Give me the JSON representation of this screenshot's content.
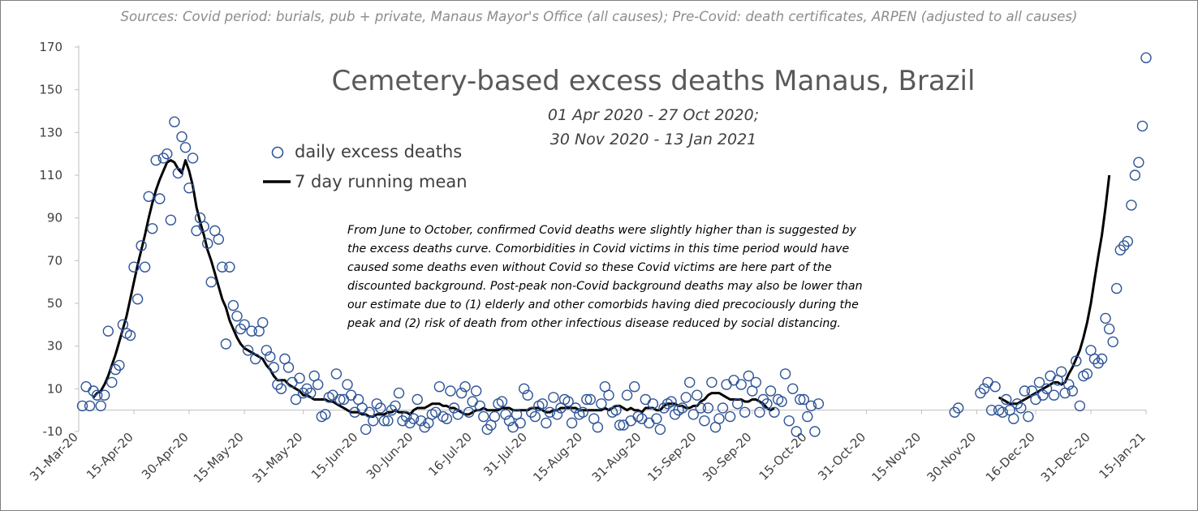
{
  "chart_data": {
    "type": "scatter",
    "source_note": "Sources: Covid period: burials, pub + private, Manaus Mayor's Office (all causes);  Pre-Covid: death certificates, ARPEN (adjusted to all causes)",
    "title": "Cemetery-based excess deaths Manaus, Brazil",
    "subtitle_lines": [
      "01 Apr 2020 - 27 Oct 2020;",
      "30 Nov 2020 - 13 Jan 2021"
    ],
    "xlabel": "",
    "ylabel": "",
    "ylim": [
      -10,
      170
    ],
    "y_ticks": [
      "-10",
      "10",
      "30",
      "50",
      "70",
      "90",
      "110",
      "130",
      "150",
      "170"
    ],
    "x_ticks": [
      "31-Mar-20",
      "15-Apr-20",
      "30-Apr-20",
      "15-May-20",
      "31-May-20",
      "15-Jun-20",
      "30-Jun-20",
      "16-Jul-20",
      "31-Jul-20",
      "15-Aug-20",
      "31-Aug-20",
      "15-Sep-20",
      "30-Sep-20",
      "15-Oct-20",
      "31-Oct-20",
      "15-Nov-20",
      "30-Nov-20",
      "16-Dec-20",
      "31-Dec-20",
      "15-Jan-21"
    ],
    "x_range": [
      "2020-03-31",
      "2021-01-15"
    ],
    "grid": false,
    "legend": {
      "placement": "top-left",
      "entries": [
        "daily excess deaths",
        "7 day running mean"
      ]
    },
    "annotation_lines": [
      "From June to October, confirmed Covid deaths were slightly higher than is suggested by",
      "the excess deaths curve. Comorbidities in Covid victims in this time period would have",
      "caused some deaths even without Covid so these Covid victims are here part of the",
      "discounted background. Post-peak non-Covid background deaths may also be lower than",
      "our estimate due to (1) elderly and  other comorbids having died precociously during the",
      "peak and (2) risk of death from other infectious disease reduced by social distancing."
    ],
    "colors": {
      "marker": "#2f5597",
      "line": "#000000",
      "axis": "#bfbfbf"
    },
    "series": [
      {
        "name": "daily excess deaths",
        "type": "scatter",
        "segments": [
          {
            "start": "2020-04-01",
            "values": [
              2,
              11,
              2,
              9,
              7,
              2,
              7,
              37,
              13,
              19,
              21,
              40,
              36,
              35,
              67,
              52,
              77,
              67,
              100,
              85,
              117,
              99,
              118,
              120,
              89,
              135,
              111,
              128,
              123,
              104,
              118,
              84,
              90,
              86,
              78,
              60,
              84,
              80,
              67,
              31,
              67,
              49,
              44,
              38,
              40,
              28,
              37,
              24,
              37,
              41,
              28,
              25,
              20,
              12,
              10,
              24,
              20,
              13,
              5,
              15,
              8,
              10,
              8,
              16,
              12,
              -3,
              -2,
              6,
              7,
              17,
              5,
              5,
              12,
              7,
              -1,
              5,
              1,
              -9,
              -1,
              -5,
              3,
              1,
              -5,
              -5,
              0,
              2,
              8,
              -5,
              -3,
              -6,
              -4,
              5,
              -5,
              -8,
              -6,
              -2,
              -1,
              11,
              -3,
              -4,
              9,
              1,
              -2,
              8,
              11,
              -1,
              4,
              9,
              2,
              -3,
              -9,
              -7,
              -3,
              3,
              4,
              -2,
              -5,
              -8,
              -2,
              -6,
              10,
              7,
              -1,
              -3,
              2,
              3,
              -6,
              -1,
              6,
              -2,
              1,
              5,
              4,
              -6,
              1,
              -2,
              -1,
              5,
              5,
              -4,
              -8,
              3,
              11,
              7,
              -1,
              0,
              -7,
              -7,
              7,
              -5,
              11,
              -3,
              -4,
              5,
              -6,
              3,
              -4,
              -9,
              1,
              3,
              4,
              -2,
              0,
              1,
              6,
              13,
              -2,
              7,
              1,
              -5,
              1,
              13,
              -8,
              -4,
              1,
              12,
              -3,
              14,
              3,
              12,
              -1,
              16,
              9,
              13,
              -1,
              5,
              3,
              9,
              -1,
              5,
              4,
              17,
              -5,
              10,
              -10,
              5,
              5,
              -3,
              2,
              -10,
              3
            ]
          },
          {
            "start": "2020-11-24",
            "values": [
              -1,
              1,
              null,
              null,
              null,
              null,
              null,
              8,
              10,
              13,
              0,
              11,
              0,
              -1,
              5,
              0,
              -4,
              3,
              1,
              9,
              -3,
              9,
              5,
              13,
              7,
              10,
              16,
              7,
              14,
              18,
              8,
              12,
              9,
              23,
              2,
              16,
              17,
              28,
              24,
              22,
              24,
              43,
              38,
              32,
              57,
              75,
              77,
              79,
              96,
              110,
              116,
              133,
              165
            ]
          }
        ]
      },
      {
        "name": "7 day running mean",
        "type": "line",
        "segments": [
          {
            "start": "2020-04-04",
            "values": [
              6,
              8,
              9,
              12,
              16,
              21,
              26,
              32,
              38,
              44,
              52,
              60,
              68,
              75,
              82,
              90,
              97,
              103,
              108,
              112,
              116,
              117,
              116,
              113,
              111,
              117,
              112,
              105,
              95,
              88,
              82,
              75,
              70,
              64,
              58,
              52,
              48,
              42,
              38,
              34,
              31,
              29,
              28,
              27,
              26,
              25,
              24,
              21,
              19,
              16,
              14,
              14,
              14,
              12,
              11,
              10,
              9,
              7,
              7,
              6,
              5,
              5,
              5,
              5,
              4,
              4,
              3,
              2,
              1,
              0,
              -1,
              -1,
              -1,
              -2,
              -2,
              -3,
              -3,
              -2,
              -2,
              -2,
              -1,
              -1,
              0,
              -1,
              -1,
              -1,
              -2,
              0,
              1,
              1,
              1,
              2,
              3,
              3,
              3,
              2,
              2,
              1,
              1,
              0,
              -1,
              -2,
              -2,
              -1,
              0,
              0,
              1,
              0,
              0,
              0,
              0,
              1,
              1,
              1,
              0,
              0,
              0,
              0,
              0,
              1,
              1,
              1,
              0,
              -1,
              -1,
              0,
              0,
              1,
              1,
              1,
              1,
              1,
              0,
              0,
              0,
              0,
              0,
              0,
              0,
              1,
              0,
              1,
              2,
              2,
              1,
              0,
              1,
              0,
              0,
              -1,
              1,
              1,
              1,
              0,
              0,
              2,
              3,
              3,
              3,
              2,
              2,
              1,
              1,
              2,
              2,
              4,
              5,
              7,
              8,
              8,
              8,
              7,
              6,
              5,
              5,
              5,
              5,
              4,
              4,
              5,
              5,
              4,
              3,
              1,
              0,
              1
            ]
          },
          {
            "start": "2020-12-06",
            "values": [
              6,
              5,
              4,
              3,
              3,
              3,
              4,
              5,
              6,
              7,
              8,
              9,
              10,
              11,
              12,
              13,
              13,
              12,
              13,
              17,
              20,
              24,
              28,
              34,
              41,
              50,
              61,
              72,
              82,
              95,
              110
            ]
          }
        ]
      }
    ]
  }
}
